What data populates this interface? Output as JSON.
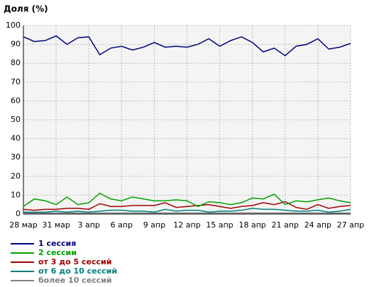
{
  "chart_data": {
    "type": "line",
    "title": "Доля (%)",
    "categories": [
      "28 мар",
      null,
      null,
      "31 мар",
      null,
      null,
      "3 апр",
      null,
      null,
      "6 апр",
      null,
      null,
      "9 апр",
      null,
      null,
      "12 апр",
      null,
      null,
      "15 апр",
      null,
      null,
      "18 апр",
      null,
      null,
      "21 апр",
      null,
      null,
      "24 апр",
      null,
      null,
      "27 апр"
    ],
    "series": [
      {
        "name": "1 сессия",
        "color": "#000080",
        "values": [
          94,
          91.5,
          92,
          94.5,
          90,
          93.5,
          94,
          84.5,
          88,
          89,
          87,
          88.5,
          91,
          88.5,
          89,
          88.5,
          90,
          93,
          89,
          92,
          94,
          91,
          86,
          88,
          84,
          89,
          90,
          93,
          87.5,
          88.5,
          90.5
        ]
      },
      {
        "name": "2 сессии",
        "color": "#00a000",
        "values": [
          4,
          8,
          7,
          5,
          9,
          5,
          6,
          11,
          8,
          7,
          9,
          8,
          7,
          7,
          7.5,
          7,
          4,
          6.5,
          6,
          5,
          6,
          8.5,
          8,
          10.5,
          5,
          7,
          6.5,
          7.5,
          8.5,
          7,
          6
        ]
      },
      {
        "name": "от 3 до 5 сессий",
        "color": "#a00000",
        "values": [
          2.5,
          2,
          2.5,
          2.5,
          3,
          3,
          2.5,
          5.5,
          4,
          4,
          4.5,
          4.5,
          4.5,
          6,
          3.5,
          4,
          4.5,
          5,
          4,
          3,
          4,
          4.5,
          6,
          5,
          6.5,
          3.5,
          2.5,
          5,
          3,
          4,
          4.5
        ]
      },
      {
        "name": "от 6 до 10 сессий",
        "color": "#008080",
        "values": [
          1,
          1,
          1,
          1.5,
          1,
          1.5,
          1,
          1.5,
          2,
          2,
          1.5,
          1.5,
          1,
          2.5,
          1.5,
          2,
          2,
          1,
          1.5,
          1.5,
          2,
          3,
          2.5,
          2.5,
          2,
          1.5,
          1.5,
          2,
          1,
          1.5,
          2.5
        ]
      },
      {
        "name": "более 10 сессий",
        "color": "#808080",
        "values": [
          0.5,
          0.5,
          0.5,
          0.5,
          0.5,
          0.5,
          0.5,
          0.5,
          0.5,
          0.5,
          0.5,
          0.5,
          0.5,
          0.5,
          0.5,
          0.5,
          0.5,
          0.5,
          0.5,
          0.5,
          0.5,
          0.5,
          0.5,
          0.5,
          0.5,
          0.5,
          0.5,
          0.5,
          0.5,
          0.5,
          0.5
        ]
      }
    ],
    "ylim": [
      0,
      100
    ],
    "yticks": [
      0,
      10,
      20,
      30,
      40,
      50,
      60,
      70,
      80,
      90,
      100
    ],
    "grid": true
  }
}
